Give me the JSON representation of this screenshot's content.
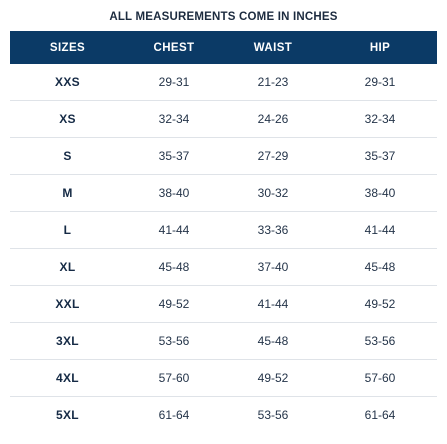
{
  "caption": "ALL MEASUREMENTS COME IN INCHES",
  "header": {
    "sizes": "SIZES",
    "chest": "CHEST",
    "waist": "WAIST",
    "hip": "HIP"
  },
  "rows": [
    {
      "size": "XXS",
      "chest": "29-31",
      "waist": "21-23",
      "hip": "29-31"
    },
    {
      "size": "XS",
      "chest": "32-34",
      "waist": "24-26",
      "hip": "32-34"
    },
    {
      "size": "S",
      "chest": "35-37",
      "waist": "27-29",
      "hip": "35-37"
    },
    {
      "size": "M",
      "chest": "38-40",
      "waist": "30-32",
      "hip": "38-40"
    },
    {
      "size": "L",
      "chest": "41-44",
      "waist": "33-36",
      "hip": "41-44"
    },
    {
      "size": "XL",
      "chest": "45-48",
      "waist": "37-40",
      "hip": "45-48"
    },
    {
      "size": "XXL",
      "chest": "49-52",
      "waist": "41-44",
      "hip": "49-52"
    },
    {
      "size": "3XL",
      "chest": "53-56",
      "waist": "45-48",
      "hip": "53-56"
    },
    {
      "size": "4XL",
      "chest": "57-60",
      "waist": "49-52",
      "hip": "57-60"
    },
    {
      "size": "5XL",
      "chest": "61-64",
      "waist": "53-56",
      "hip": "61-64"
    }
  ],
  "colors": {
    "header_bg": "#0b3a66",
    "header_text": "#ffffff",
    "row_divider": "#dfe3e8"
  }
}
